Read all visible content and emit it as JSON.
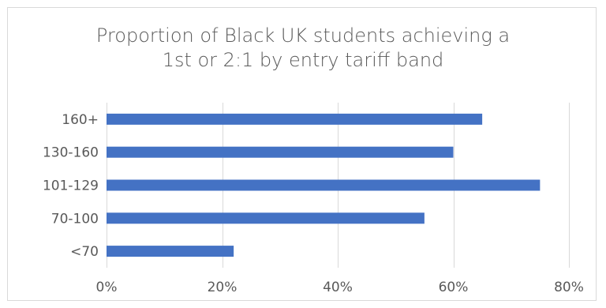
{
  "chart_data": {
    "type": "bar",
    "orientation": "horizontal",
    "title_lines": [
      "Proportion of Black UK students achieving a",
      "1st or 2:1 by entry tariff band"
    ],
    "categories": [
      "160+",
      "130-160",
      "101-129",
      "70-100",
      "<70"
    ],
    "values": [
      65,
      60,
      75,
      55,
      22
    ],
    "unit": "%",
    "xlim": [
      0,
      80
    ],
    "xticks": [
      0,
      20,
      40,
      60,
      80
    ],
    "xtick_labels": [
      "0%",
      "20%",
      "40%",
      "60%",
      "80%"
    ],
    "grid": true,
    "legend": "none",
    "bar_color": "#4472c4",
    "grid_color": "#d9d9d9",
    "text_color": "#595959"
  }
}
